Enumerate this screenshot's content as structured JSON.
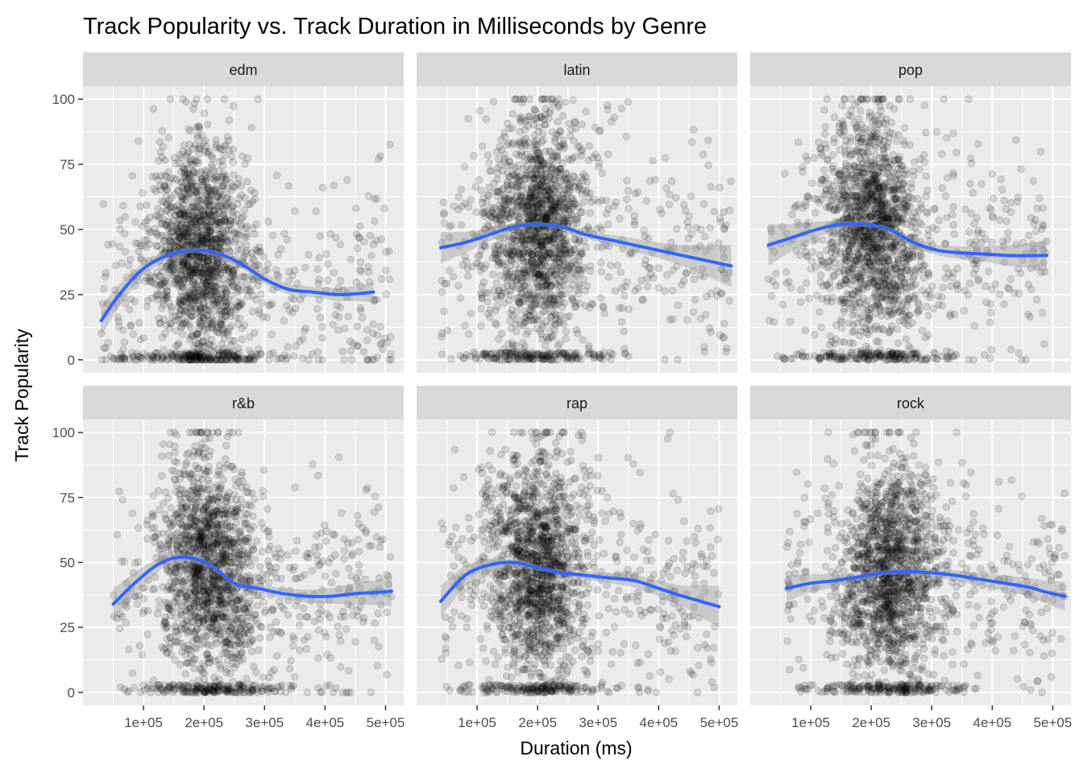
{
  "chart_data": {
    "type": "scatter",
    "title": "Track Popularity vs. Track Duration in Milliseconds by Genre",
    "xlabel": "Duration (ms)",
    "ylabel": "Track Popularity",
    "xlim": [
      0,
      530000
    ],
    "ylim": [
      -5,
      105
    ],
    "x_ticks": [
      100000,
      200000,
      300000,
      400000,
      500000
    ],
    "x_tick_labels": [
      "1e+05",
      "2e+05",
      "3e+05",
      "4e+05",
      "5e+05"
    ],
    "y_ticks": [
      0,
      25,
      50,
      75,
      100
    ],
    "y_tick_labels": [
      "0",
      "25",
      "50",
      "75",
      "100"
    ],
    "grid": true,
    "legend": "none",
    "point_color": "#000000",
    "point_alpha": 0.12,
    "smooth_color": "#3366FF",
    "ribbon_color": "#999999",
    "panel_background": "#EBEBEB",
    "strip_background": "#D9D9D9",
    "facets": [
      {
        "genre": "edm",
        "x_range": [
          30000,
          510000
        ],
        "core_mean_x": 195000,
        "smooth": [
          [
            30000,
            15
          ],
          [
            60000,
            25
          ],
          [
            100000,
            35
          ],
          [
            140000,
            40
          ],
          [
            180000,
            42
          ],
          [
            220000,
            41
          ],
          [
            260000,
            37
          ],
          [
            300000,
            31
          ],
          [
            340000,
            27
          ],
          [
            380000,
            26
          ],
          [
            420000,
            25
          ],
          [
            460000,
            25.5
          ],
          [
            480000,
            26
          ]
        ],
        "ribbon_halfwidth": [
          6,
          4,
          2.5,
          1.5,
          1,
          1,
          1.5,
          2,
          2,
          2,
          2.5,
          3,
          4
        ]
      },
      {
        "genre": "latin",
        "x_range": [
          40000,
          520000
        ],
        "core_mean_x": 205000,
        "smooth": [
          [
            40000,
            43
          ],
          [
            80000,
            45
          ],
          [
            120000,
            48
          ],
          [
            160000,
            51
          ],
          [
            200000,
            52
          ],
          [
            240000,
            51
          ],
          [
            280000,
            48
          ],
          [
            320000,
            46
          ],
          [
            360000,
            44
          ],
          [
            400000,
            42
          ],
          [
            440000,
            40
          ],
          [
            480000,
            38
          ],
          [
            520000,
            36
          ]
        ],
        "ribbon_halfwidth": [
          6,
          4,
          2.5,
          1.5,
          1,
          1,
          1.5,
          2,
          2.5,
          3,
          4,
          6,
          8
        ]
      },
      {
        "genre": "pop",
        "x_range": [
          30000,
          490000
        ],
        "core_mean_x": 200000,
        "smooth": [
          [
            30000,
            44
          ],
          [
            70000,
            47
          ],
          [
            110000,
            50
          ],
          [
            150000,
            52
          ],
          [
            190000,
            52
          ],
          [
            230000,
            50
          ],
          [
            270000,
            45
          ],
          [
            310000,
            42
          ],
          [
            350000,
            41
          ],
          [
            390000,
            40.5
          ],
          [
            430000,
            40
          ],
          [
            470000,
            40
          ],
          [
            490000,
            40
          ]
        ],
        "ribbon_halfwidth": [
          8,
          5,
          3,
          1.5,
          1,
          1,
          1.5,
          2,
          2.5,
          3,
          4,
          5,
          6
        ]
      },
      {
        "genre": "r&b",
        "x_range": [
          50000,
          510000
        ],
        "core_mean_x": 210000,
        "smooth": [
          [
            50000,
            34
          ],
          [
            90000,
            43
          ],
          [
            130000,
            50
          ],
          [
            170000,
            52
          ],
          [
            210000,
            49
          ],
          [
            250000,
            42
          ],
          [
            290000,
            40
          ],
          [
            330000,
            38
          ],
          [
            370000,
            37
          ],
          [
            410000,
            37
          ],
          [
            450000,
            38
          ],
          [
            490000,
            38.5
          ],
          [
            510000,
            39
          ]
        ],
        "ribbon_halfwidth": [
          6,
          4,
          2.5,
          1.5,
          1,
          1,
          1.5,
          2,
          2.5,
          3,
          4,
          5,
          6
        ]
      },
      {
        "genre": "rap",
        "x_range": [
          40000,
          500000
        ],
        "core_mean_x": 200000,
        "smooth": [
          [
            40000,
            35
          ],
          [
            80000,
            45
          ],
          [
            120000,
            49
          ],
          [
            160000,
            50
          ],
          [
            200000,
            48
          ],
          [
            240000,
            46
          ],
          [
            280000,
            45
          ],
          [
            320000,
            44
          ],
          [
            360000,
            43
          ],
          [
            400000,
            40
          ],
          [
            440000,
            37
          ],
          [
            470000,
            35
          ],
          [
            500000,
            33
          ]
        ],
        "ribbon_halfwidth": [
          6,
          4,
          2.5,
          1.5,
          1,
          1,
          1.5,
          2,
          2.5,
          3,
          4,
          6,
          8
        ]
      },
      {
        "genre": "rock",
        "x_range": [
          60000,
          520000
        ],
        "core_mean_x": 230000,
        "smooth": [
          [
            60000,
            40
          ],
          [
            100000,
            42
          ],
          [
            140000,
            43
          ],
          [
            180000,
            44.5
          ],
          [
            220000,
            46
          ],
          [
            260000,
            46.5
          ],
          [
            300000,
            46
          ],
          [
            340000,
            45
          ],
          [
            380000,
            43.5
          ],
          [
            420000,
            42
          ],
          [
            460000,
            40.5
          ],
          [
            490000,
            38.5
          ],
          [
            520000,
            37
          ]
        ],
        "ribbon_halfwidth": [
          5,
          3.5,
          2.5,
          1.5,
          1,
          1,
          1.5,
          2,
          2.5,
          3,
          3.5,
          4.5,
          5.5
        ]
      }
    ]
  }
}
